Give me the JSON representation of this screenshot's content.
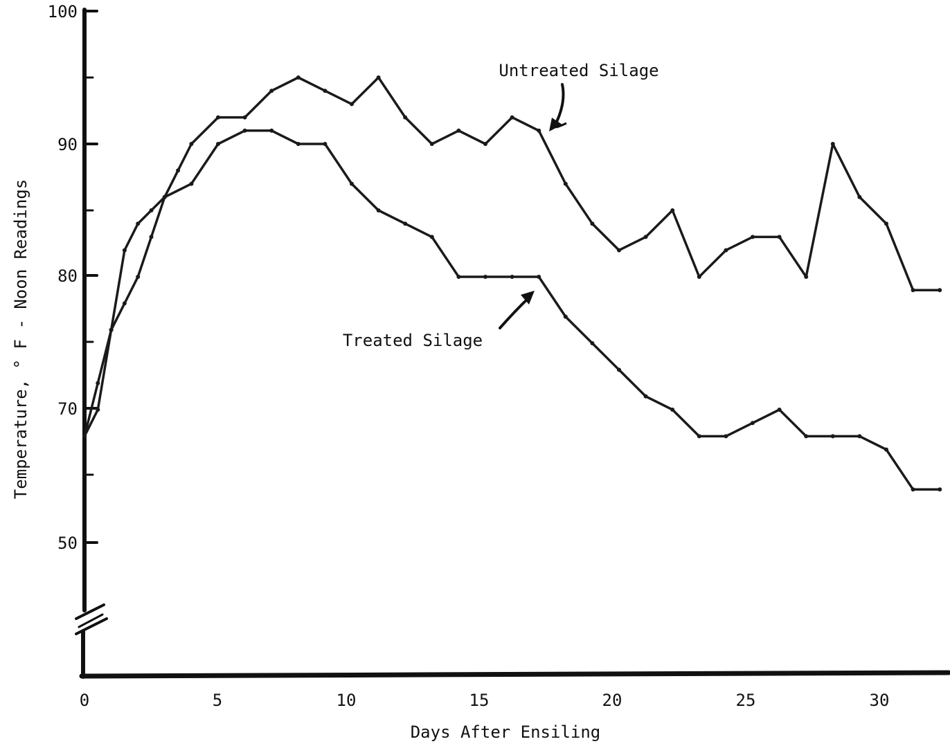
{
  "chart_data": {
    "type": "line",
    "title": "",
    "xlabel": "Days After Ensiling",
    "ylabel": "Temperature, ° F - Noon Readings",
    "xlim": [
      0,
      32.5
    ],
    "ylim": [
      40,
      100
    ],
    "axis_break": "y-axis break below 50",
    "grid": false,
    "x_ticks": [
      "0",
      "5",
      "10",
      "15",
      "20",
      "25",
      "30"
    ],
    "y_ticks": [
      "50",
      "70",
      "80",
      "90",
      "100"
    ],
    "annotations": [
      "Untreated Silage",
      "Treated Silage"
    ],
    "series": [
      {
        "name": "Untreated Silage",
        "x": [
          0,
          0.5,
          1,
          1.5,
          2,
          2.5,
          3,
          3.5,
          4,
          5,
          6,
          7,
          8,
          9,
          10,
          11,
          12,
          13,
          14,
          15,
          16,
          17,
          18,
          19,
          20,
          21,
          22,
          23,
          24,
          25,
          26,
          27,
          28,
          29,
          30,
          31,
          32
        ],
        "y": [
          68,
          70,
          76,
          78,
          80,
          83,
          86,
          88,
          90,
          92,
          92,
          94,
          95,
          94,
          93,
          95,
          92,
          90,
          91,
          90,
          92,
          91,
          87,
          84,
          82,
          83,
          85,
          80,
          82,
          83,
          83,
          80,
          90,
          86,
          84,
          79,
          79
        ]
      },
      {
        "name": "Treated Silage",
        "x": [
          0,
          0.5,
          1,
          1.5,
          2,
          2.5,
          3,
          4,
          5,
          6,
          7,
          8,
          9,
          10,
          11,
          12,
          13,
          14,
          15,
          16,
          17,
          18,
          19,
          20,
          21,
          22,
          23,
          24,
          25,
          26,
          27,
          28,
          29,
          30,
          31,
          32
        ],
        "y": [
          68,
          72,
          76,
          82,
          84,
          85,
          86,
          87,
          90,
          91,
          91,
          90,
          90,
          87,
          85,
          84,
          83,
          80,
          80,
          80,
          80,
          77,
          75,
          73,
          71,
          70,
          68,
          68,
          69,
          70,
          68,
          68,
          68,
          67,
          64,
          64
        ]
      }
    ]
  }
}
